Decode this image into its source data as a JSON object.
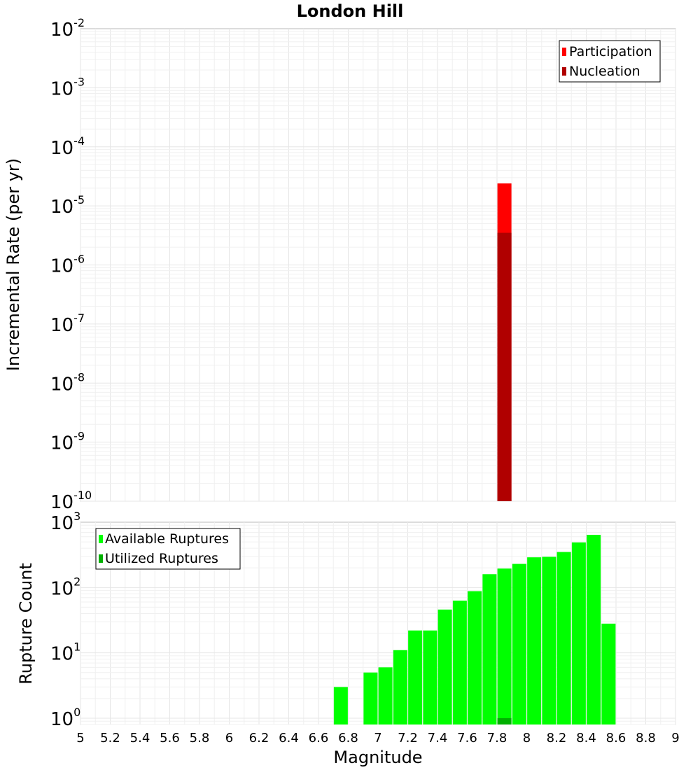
{
  "title": "London Hill",
  "xlabel": "Magnitude",
  "colors": {
    "participation": "#ff0000",
    "nucleation": "#b00000",
    "available": "#00ff00",
    "utilized": "#00b000"
  },
  "chart_data": [
    {
      "type": "bar",
      "panel": "top",
      "ylabel": "Incremental Rate (per yr)",
      "yscale": "log",
      "xlim": [
        5,
        9
      ],
      "ylim": [
        1e-10,
        0.01
      ],
      "legend_placement": "top-right",
      "grid": true,
      "series": [
        {
          "name": "Participation",
          "x": [
            7.85
          ],
          "values": [
            2.4e-05
          ]
        },
        {
          "name": "Nucleation",
          "x": [
            7.85
          ],
          "values": [
            3.5e-06
          ]
        }
      ]
    },
    {
      "type": "bar",
      "panel": "bottom",
      "ylabel": "Rupture Count",
      "yscale": "log",
      "xlim": [
        5,
        9
      ],
      "ylim": [
        0.8,
        1000
      ],
      "legend_placement": "top-left",
      "grid": true,
      "series": [
        {
          "name": "Available Ruptures",
          "x": [
            6.75,
            6.95,
            7.05,
            7.15,
            7.25,
            7.35,
            7.45,
            7.55,
            7.65,
            7.75,
            7.85,
            7.95,
            8.05,
            8.15,
            8.25,
            8.35,
            8.45,
            8.55
          ],
          "values": [
            3,
            5,
            6,
            11,
            22,
            22,
            46,
            63,
            88,
            160,
            195,
            230,
            290,
            295,
            350,
            490,
            640,
            28
          ]
        },
        {
          "name": "Utilized Ruptures",
          "x": [
            7.85
          ],
          "values": [
            1
          ]
        }
      ]
    }
  ],
  "xticks": [
    "5",
    "5.2",
    "5.4",
    "5.6",
    "5.8",
    "6",
    "6.2",
    "6.4",
    "6.6",
    "6.8",
    "7",
    "7.2",
    "7.4",
    "7.6",
    "7.8",
    "8",
    "8.2",
    "8.4",
    "8.6",
    "8.8",
    "9"
  ],
  "top_yticks": [
    {
      "base": "10",
      "exp": "-2",
      "value": 0.01
    },
    {
      "base": "10",
      "exp": "-3",
      "value": 0.001
    },
    {
      "base": "10",
      "exp": "-4",
      "value": 0.0001
    },
    {
      "base": "10",
      "exp": "-5",
      "value": 1e-05
    },
    {
      "base": "10",
      "exp": "-6",
      "value": 1e-06
    },
    {
      "base": "10",
      "exp": "-7",
      "value": 1e-07
    },
    {
      "base": "10",
      "exp": "-8",
      "value": 1e-08
    },
    {
      "base": "10",
      "exp": "-9",
      "value": 1e-09
    },
    {
      "base": "10",
      "exp": "-10",
      "value": 1e-10
    }
  ],
  "bottom_yticks": [
    {
      "base": "10",
      "exp": "3",
      "value": 1000
    },
    {
      "base": "10",
      "exp": "2",
      "value": 100
    },
    {
      "base": "10",
      "exp": "1",
      "value": 10
    },
    {
      "base": "10",
      "exp": "0",
      "value": 1
    }
  ]
}
